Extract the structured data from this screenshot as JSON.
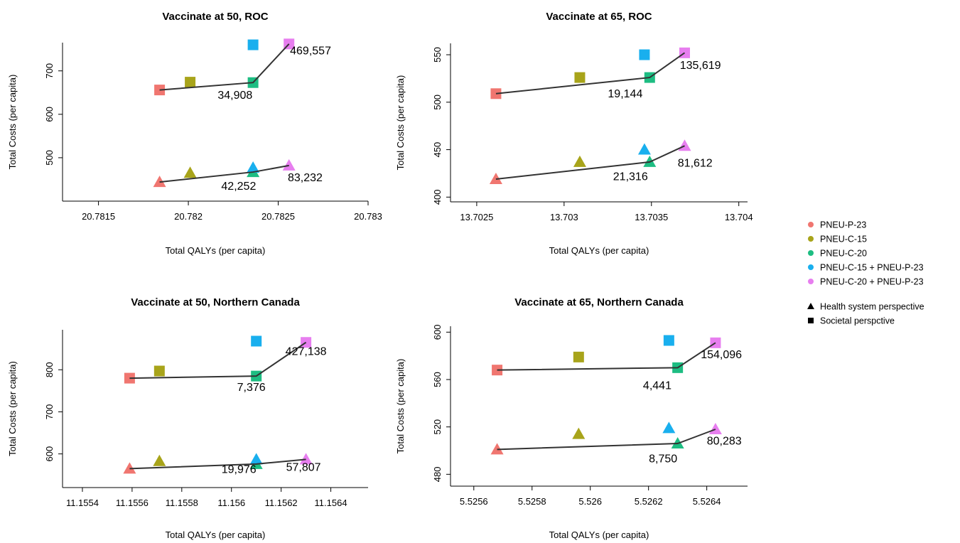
{
  "colors": {
    "PNEU-P-23": "#F07670",
    "PNEU-C-15": "#A8A41A",
    "PNEU-C-20": "#1DBD82",
    "PNEU-C-15 + PNEU-P-23": "#19AFEE",
    "PNEU-C-20 + PNEU-P-23": "#E77EEF"
  },
  "legend": {
    "strategies": [
      "PNEU-P-23",
      "PNEU-C-15",
      "PNEU-C-20",
      "PNEU-C-15 + PNEU-P-23",
      "PNEU-C-20 + PNEU-P-23"
    ],
    "perspectives": [
      {
        "label": "Health system perspective",
        "shape": "triangle"
      },
      {
        "label": "Societal perspctive",
        "shape": "square"
      }
    ]
  },
  "chart_data": [
    {
      "type": "scatter",
      "title": "Vaccinate at 50, ROC",
      "xlabel": "Total QALYs (per capita)",
      "ylabel": "Total Costs (per capita)",
      "xlim": [
        20.7813,
        20.783
      ],
      "ylim": [
        400,
        765
      ],
      "xticks": [
        20.7815,
        20.782,
        20.7825,
        20.783
      ],
      "xtick_labels": [
        "20.7815",
        "20.782",
        "20.7825",
        "20.783"
      ],
      "yticks": [
        500,
        600,
        700
      ],
      "ytick_labels": [
        "500",
        "600",
        "700"
      ],
      "series": [
        {
          "perspective": "Societal",
          "shape": "square",
          "points": [
            {
              "strategy": "PNEU-P-23",
              "x": 20.78184,
              "y": 656
            },
            {
              "strategy": "PNEU-C-15",
              "x": 20.78201,
              "y": 674
            },
            {
              "strategy": "PNEU-C-20",
              "x": 20.78236,
              "y": 673
            },
            {
              "strategy": "PNEU-C-15 + PNEU-P-23",
              "x": 20.78236,
              "y": 760
            },
            {
              "strategy": "PNEU-C-20 + PNEU-P-23",
              "x": 20.78256,
              "y": 762
            }
          ],
          "frontier": [
            [
              20.78184,
              656
            ],
            [
              20.78236,
              673
            ],
            [
              20.78256,
              762
            ]
          ]
        },
        {
          "perspective": "Health system",
          "shape": "triangle",
          "points": [
            {
              "strategy": "PNEU-P-23",
              "x": 20.78184,
              "y": 444
            },
            {
              "strategy": "PNEU-C-15",
              "x": 20.78201,
              "y": 465
            },
            {
              "strategy": "PNEU-C-20",
              "x": 20.78236,
              "y": 467
            },
            {
              "strategy": "PNEU-C-15 + PNEU-P-23",
              "x": 20.78236,
              "y": 477
            },
            {
              "strategy": "PNEU-C-20 + PNEU-P-23",
              "x": 20.78256,
              "y": 482
            }
          ],
          "frontier": [
            [
              20.78184,
              444
            ],
            [
              20.78236,
              467
            ],
            [
              20.78256,
              482
            ]
          ]
        }
      ],
      "annotations": [
        {
          "text": "469,557",
          "x": 20.78268,
          "y": 738
        },
        {
          "text": "34,908",
          "x": 20.78226,
          "y": 636
        },
        {
          "text": "42,252",
          "x": 20.78228,
          "y": 426
        },
        {
          "text": "83,232",
          "x": 20.78265,
          "y": 446
        }
      ]
    },
    {
      "type": "scatter",
      "title": "Vaccinate at 65, ROC",
      "xlabel": "Total QALYs (per capita)",
      "ylabel": "Total Costs (per capita)",
      "xlim": [
        13.70235,
        13.70405
      ],
      "ylim": [
        395,
        562
      ],
      "xticks": [
        13.7025,
        13.703,
        13.7035,
        13.704
      ],
      "xtick_labels": [
        "13.7025",
        "13.703",
        "13.7035",
        "13.704"
      ],
      "yticks": [
        400,
        450,
        500,
        550
      ],
      "ytick_labels": [
        "400",
        "450",
        "500",
        "550"
      ],
      "series": [
        {
          "perspective": "Societal",
          "shape": "square",
          "points": [
            {
              "strategy": "PNEU-P-23",
              "x": 13.70261,
              "y": 509
            },
            {
              "strategy": "PNEU-C-15",
              "x": 13.70309,
              "y": 526
            },
            {
              "strategy": "PNEU-C-20",
              "x": 13.70349,
              "y": 526
            },
            {
              "strategy": "PNEU-C-15 + PNEU-P-23",
              "x": 13.70346,
              "y": 550
            },
            {
              "strategy": "PNEU-C-20 + PNEU-P-23",
              "x": 13.70369,
              "y": 552
            }
          ],
          "frontier": [
            [
              13.70261,
              509
            ],
            [
              13.70349,
              526
            ],
            [
              13.70369,
              552
            ]
          ]
        },
        {
          "perspective": "Health system",
          "shape": "triangle",
          "points": [
            {
              "strategy": "PNEU-P-23",
              "x": 13.70261,
              "y": 419
            },
            {
              "strategy": "PNEU-C-15",
              "x": 13.70309,
              "y": 437
            },
            {
              "strategy": "PNEU-C-20",
              "x": 13.70349,
              "y": 437
            },
            {
              "strategy": "PNEU-C-15 + PNEU-P-23",
              "x": 13.70346,
              "y": 450
            },
            {
              "strategy": "PNEU-C-20 + PNEU-P-23",
              "x": 13.70369,
              "y": 454
            }
          ],
          "frontier": [
            [
              13.70261,
              419
            ],
            [
              13.70349,
              437
            ],
            [
              13.70369,
              454
            ]
          ]
        }
      ],
      "annotations": [
        {
          "text": "135,619",
          "x": 13.70378,
          "y": 535
        },
        {
          "text": "19,144",
          "x": 13.70335,
          "y": 505
        },
        {
          "text": "81,612",
          "x": 13.70375,
          "y": 432
        },
        {
          "text": "21,316",
          "x": 13.70338,
          "y": 418
        }
      ]
    },
    {
      "type": "scatter",
      "title": "Vaccinate at 50, Northern Canada",
      "xlabel": "Total QALYs (per capita)",
      "ylabel": "Total Costs (per capita)",
      "xlim": [
        11.15532,
        11.15655
      ],
      "ylim": [
        520,
        895
      ],
      "xticks": [
        11.1554,
        11.1556,
        11.1558,
        11.156,
        11.1562,
        11.1564
      ],
      "xtick_labels": [
        "11.1554",
        "11.1556",
        "11.1558",
        "11.156",
        "11.1562",
        "11.1564"
      ],
      "yticks": [
        600,
        700,
        800
      ],
      "ytick_labels": [
        "600",
        "700",
        "800"
      ],
      "series": [
        {
          "perspective": "Societal",
          "shape": "square",
          "points": [
            {
              "strategy": "PNEU-P-23",
              "x": 11.15559,
              "y": 780
            },
            {
              "strategy": "PNEU-C-15",
              "x": 11.15571,
              "y": 797
            },
            {
              "strategy": "PNEU-C-20",
              "x": 11.1561,
              "y": 785
            },
            {
              "strategy": "PNEU-C-15 + PNEU-P-23",
              "x": 11.1561,
              "y": 868
            },
            {
              "strategy": "PNEU-C-20 + PNEU-P-23",
              "x": 11.1563,
              "y": 865
            }
          ],
          "frontier": [
            [
              11.15559,
              780
            ],
            [
              11.1561,
              785
            ],
            [
              11.1563,
              865
            ]
          ]
        },
        {
          "perspective": "Health system",
          "shape": "triangle",
          "points": [
            {
              "strategy": "PNEU-P-23",
              "x": 11.15559,
              "y": 565
            },
            {
              "strategy": "PNEU-C-15",
              "x": 11.15571,
              "y": 583
            },
            {
              "strategy": "PNEU-C-20",
              "x": 11.1561,
              "y": 576
            },
            {
              "strategy": "PNEU-C-15 + PNEU-P-23",
              "x": 11.1561,
              "y": 587
            },
            {
              "strategy": "PNEU-C-20 + PNEU-P-23",
              "x": 11.1563,
              "y": 587
            }
          ],
          "frontier": [
            [
              11.15559,
              565
            ],
            [
              11.1561,
              576
            ],
            [
              11.1563,
              587
            ]
          ]
        }
      ],
      "annotations": [
        {
          "text": "427,138",
          "x": 11.1563,
          "y": 835
        },
        {
          "text": "7,376",
          "x": 11.15608,
          "y": 750
        },
        {
          "text": "19,976",
          "x": 11.15603,
          "y": 555
        },
        {
          "text": "57,807",
          "x": 11.15629,
          "y": 560
        }
      ]
    },
    {
      "type": "scatter",
      "title": "Vaccinate at 65, Northern Canada",
      "xlabel": "Total QALYs (per capita)",
      "ylabel": "Total Costs (per capita)",
      "xlim": [
        5.52552,
        5.52654
      ],
      "ylim": [
        470,
        605
      ],
      "xticks": [
        5.5256,
        5.5258,
        5.526,
        5.5262,
        5.5264
      ],
      "xtick_labels": [
        "5.5256",
        "5.5258",
        "5.526",
        "5.5262",
        "5.5264"
      ],
      "yticks": [
        480,
        520,
        560,
        600
      ],
      "ytick_labels": [
        "480",
        "520",
        "560",
        "600"
      ],
      "series": [
        {
          "perspective": "Societal",
          "shape": "square",
          "points": [
            {
              "strategy": "PNEU-P-23",
              "x": 5.52568,
              "y": 568
            },
            {
              "strategy": "PNEU-C-15",
              "x": 5.52596,
              "y": 579
            },
            {
              "strategy": "PNEU-C-20",
              "x": 5.5263,
              "y": 570
            },
            {
              "strategy": "PNEU-C-15 + PNEU-P-23",
              "x": 5.52627,
              "y": 593
            },
            {
              "strategy": "PNEU-C-20 + PNEU-P-23",
              "x": 5.52643,
              "y": 591
            }
          ],
          "frontier": [
            [
              5.52568,
              568
            ],
            [
              5.5263,
              570
            ],
            [
              5.52643,
              591
            ]
          ]
        },
        {
          "perspective": "Health system",
          "shape": "triangle",
          "points": [
            {
              "strategy": "PNEU-P-23",
              "x": 5.52568,
              "y": 501
            },
            {
              "strategy": "PNEU-C-15",
              "x": 5.52596,
              "y": 514
            },
            {
              "strategy": "PNEU-C-20",
              "x": 5.5263,
              "y": 506
            },
            {
              "strategy": "PNEU-C-15 + PNEU-P-23",
              "x": 5.52627,
              "y": 519
            },
            {
              "strategy": "PNEU-C-20 + PNEU-P-23",
              "x": 5.52643,
              "y": 518
            }
          ],
          "frontier": [
            [
              5.52568,
              501
            ],
            [
              5.5263,
              506
            ],
            [
              5.52643,
              518
            ]
          ]
        }
      ],
      "annotations": [
        {
          "text": "154,096",
          "x": 5.52645,
          "y": 578
        },
        {
          "text": "4,441",
          "x": 5.52623,
          "y": 552
        },
        {
          "text": "80,283",
          "x": 5.52646,
          "y": 505
        },
        {
          "text": "8,750",
          "x": 5.52625,
          "y": 490
        }
      ]
    }
  ]
}
